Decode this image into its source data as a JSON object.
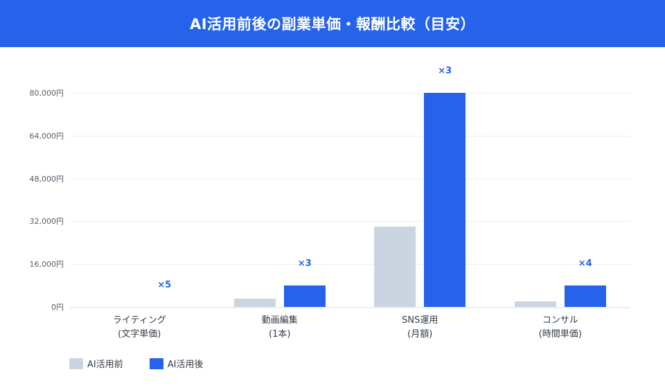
{
  "header": {
    "title": "AI活用前後の副業単価・報酬比較（目安）"
  },
  "colors": {
    "before": "#cbd5e1",
    "after": "#2563eb",
    "header_bg": "#2563eb"
  },
  "legend": [
    {
      "label": "AI活用前",
      "color": "#cbd5e1"
    },
    {
      "label": "AI活用後",
      "color": "#2563eb"
    }
  ],
  "chart_data": {
    "type": "bar",
    "title": "AI活用前後の副業単価・報酬比較（目安）",
    "categories": [
      "ライティング\n(文字単価)",
      "動画編集\n(1本)",
      "SNS運用\n(月額)",
      "コンサル\n(時間単価)"
    ],
    "category_lines": [
      [
        "ライティング",
        "(文字単価)"
      ],
      [
        "動画編集",
        "(1本)"
      ],
      [
        "SNS運用",
        "(月額)"
      ],
      [
        "コンサル",
        "(時間単価)"
      ]
    ],
    "series": [
      {
        "name": "AI活用前",
        "values": [
          1,
          3000,
          30000,
          2000
        ]
      },
      {
        "name": "AI活用後",
        "values": [
          5,
          8000,
          80000,
          8000
        ]
      }
    ],
    "annotations": [
      "×5",
      "×3",
      "×3",
      "×4"
    ],
    "yticks": [
      "0円",
      "16,000円",
      "32,000円",
      "48,000円",
      "64,000円",
      "80,000円"
    ],
    "ylim": [
      0,
      80000
    ],
    "xlabel": "",
    "ylabel": "",
    "grid": true,
    "legend_position": "bottom-left"
  }
}
